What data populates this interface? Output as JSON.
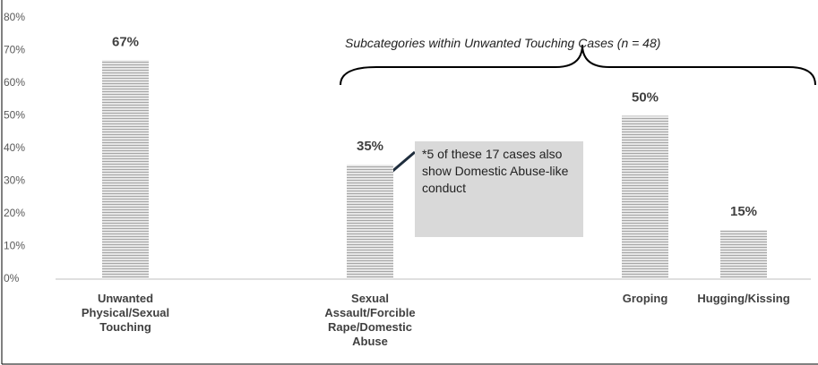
{
  "chart_data": {
    "type": "bar",
    "categories": [
      "Unwanted Physical/Sexual Touching",
      "Sexual Assault/Forcible Rape/Domestic Abuse",
      "Groping",
      "Hugging/Kissing"
    ],
    "values": [
      67,
      35,
      50,
      15
    ],
    "value_labels": [
      "67%",
      "35%",
      "50%",
      "15%"
    ],
    "color": "#c8c8c8",
    "ylim": [
      0,
      80
    ],
    "yticks": [
      {
        "value": 0,
        "label": "0%"
      },
      {
        "value": 10,
        "label": "10%"
      },
      {
        "value": 20,
        "label": "20%"
      },
      {
        "value": 30,
        "label": "30%"
      },
      {
        "value": 40,
        "label": "40%"
      },
      {
        "value": 50,
        "label": "50%"
      },
      {
        "value": 60,
        "label": "60%"
      },
      {
        "value": 70,
        "label": "70%"
      },
      {
        "value": 80,
        "label": "80%"
      }
    ],
    "grid": false,
    "annotations": [
      "Subcategories within Unwanted Touching Cases (n = 48)",
      "*5 of these 17 cases also show Domestic Abuse-like conduct"
    ]
  }
}
